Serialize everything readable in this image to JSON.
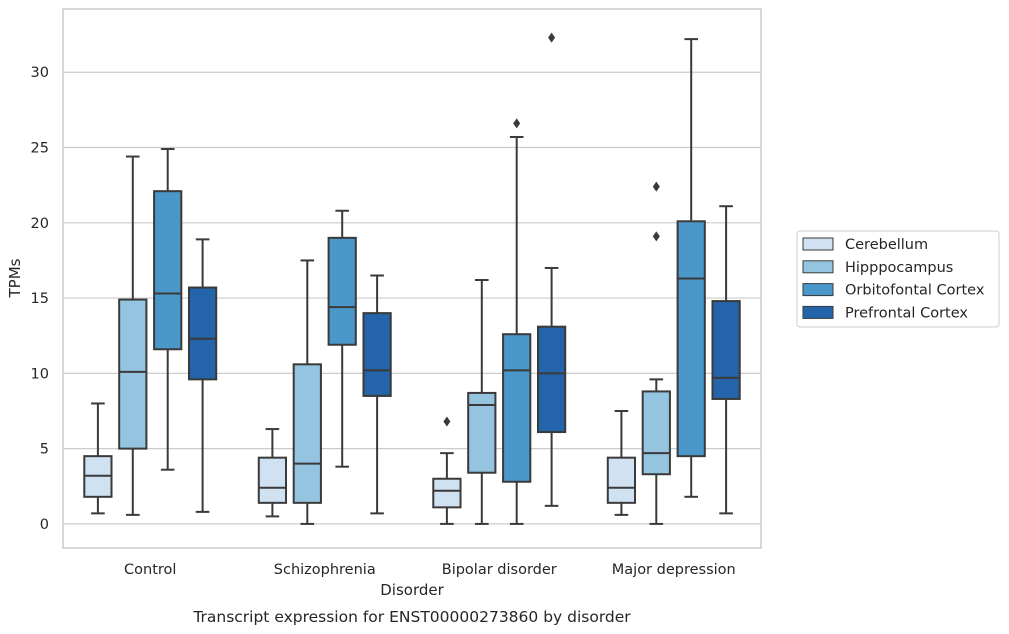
{
  "chart_data": {
    "type": "box",
    "title": "",
    "caption": "Transcript expression for ENST00000273860 by disorder",
    "xlabel": "Disorder",
    "ylabel": "TPMs",
    "ylim": [
      -1.6,
      34.2
    ],
    "yticks": [
      0,
      5,
      10,
      15,
      20,
      25,
      30
    ],
    "grid": "horizontal",
    "legend_position": "right",
    "categories": [
      "Control",
      "Schizophrenia",
      "Bipolar disorder",
      "Major depression"
    ],
    "series": [
      {
        "name": "Cerebellum",
        "color": "#d0e1f2",
        "boxes": [
          {
            "whisker_low": 0.7,
            "q1": 1.8,
            "median": 3.2,
            "q3": 4.5,
            "whisker_high": 8.0,
            "outliers": []
          },
          {
            "whisker_low": 0.5,
            "q1": 1.4,
            "median": 2.4,
            "q3": 4.4,
            "whisker_high": 6.3,
            "outliers": []
          },
          {
            "whisker_low": 0.0,
            "q1": 1.1,
            "median": 2.2,
            "q3": 3.0,
            "whisker_high": 4.7,
            "outliers": [
              6.8
            ]
          },
          {
            "whisker_low": 0.6,
            "q1": 1.4,
            "median": 2.4,
            "q3": 4.4,
            "whisker_high": 7.5,
            "outliers": []
          }
        ]
      },
      {
        "name": "Hipppocampus",
        "color": "#94c4df",
        "boxes": [
          {
            "whisker_low": 0.6,
            "q1": 5.0,
            "median": 10.1,
            "q3": 14.9,
            "whisker_high": 24.4,
            "outliers": []
          },
          {
            "whisker_low": 0.0,
            "q1": 1.4,
            "median": 4.0,
            "q3": 10.6,
            "whisker_high": 17.5,
            "outliers": []
          },
          {
            "whisker_low": 0.0,
            "q1": 3.4,
            "median": 7.9,
            "q3": 8.7,
            "whisker_high": 16.2,
            "outliers": []
          },
          {
            "whisker_low": 0.0,
            "q1": 3.3,
            "median": 4.7,
            "q3": 8.8,
            "whisker_high": 9.6,
            "outliers": [
              19.1,
              22.4
            ]
          }
        ]
      },
      {
        "name": "Orbitofontal Cortex",
        "color": "#4a98c9",
        "boxes": [
          {
            "whisker_low": 3.6,
            "q1": 11.6,
            "median": 15.3,
            "q3": 22.1,
            "whisker_high": 24.9,
            "outliers": []
          },
          {
            "whisker_low": 3.8,
            "q1": 11.9,
            "median": 14.4,
            "q3": 19.0,
            "whisker_high": 20.8,
            "outliers": []
          },
          {
            "whisker_low": 0.0,
            "q1": 2.8,
            "median": 10.2,
            "q3": 12.6,
            "whisker_high": 25.7,
            "outliers": [
              26.6
            ]
          },
          {
            "whisker_low": 1.8,
            "q1": 4.5,
            "median": 16.3,
            "q3": 20.1,
            "whisker_high": 32.2,
            "outliers": []
          }
        ]
      },
      {
        "name": "Prefrontal Cortex",
        "color": "#2364aa",
        "boxes": [
          {
            "whisker_low": 0.8,
            "q1": 9.6,
            "median": 12.3,
            "q3": 15.7,
            "whisker_high": 18.9,
            "outliers": []
          },
          {
            "whisker_low": 0.7,
            "q1": 8.5,
            "median": 10.2,
            "q3": 14.0,
            "whisker_high": 16.5,
            "outliers": []
          },
          {
            "whisker_low": 1.2,
            "q1": 6.1,
            "median": 10.0,
            "q3": 13.1,
            "whisker_high": 17.0,
            "outliers": [
              32.3
            ]
          },
          {
            "whisker_low": 0.7,
            "q1": 8.3,
            "median": 9.7,
            "q3": 14.8,
            "whisker_high": 21.1,
            "outliers": []
          }
        ]
      }
    ]
  }
}
